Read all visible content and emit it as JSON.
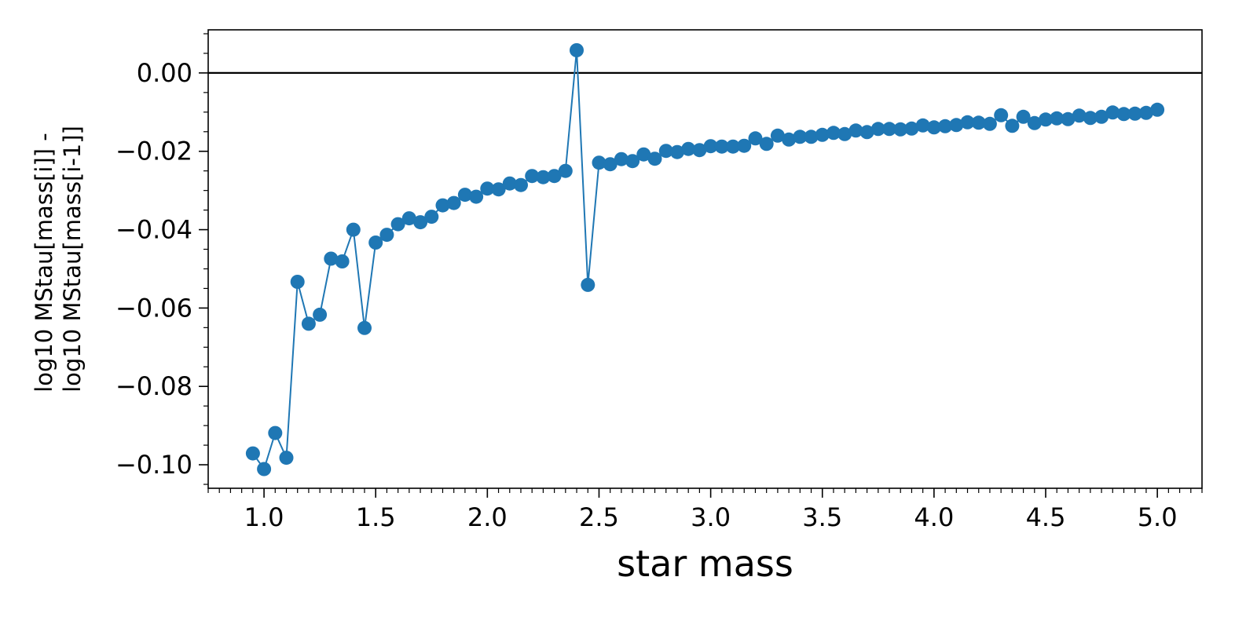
{
  "chart_data": {
    "type": "line",
    "xlabel": "star mass",
    "ylabel_lines": [
      "log10 MStau[mass[i]] -",
      "log10 MStau[mass[i-1]]"
    ],
    "xlim": [
      0.75,
      5.2
    ],
    "ylim": [
      -0.106,
      0.011
    ],
    "x_ticks": [
      1.0,
      1.5,
      2.0,
      2.5,
      3.0,
      3.5,
      4.0,
      4.5,
      5.0
    ],
    "x_tick_labels": [
      "1.0",
      "1.5",
      "2.0",
      "2.5",
      "3.0",
      "3.5",
      "4.0",
      "4.5",
      "5.0"
    ],
    "y_ticks": [
      0.0,
      -0.02,
      -0.04,
      -0.06,
      -0.08,
      -0.1
    ],
    "y_tick_labels": [
      "0.00",
      "−0.02",
      "−0.04",
      "−0.06",
      "−0.08",
      "−0.10"
    ],
    "reference_line_y": 0.0,
    "grid": false,
    "colors": {
      "series": "#1f77b4",
      "axes": "#000000",
      "reference_line": "#000000"
    },
    "series": [
      {
        "x": [
          0.95,
          1.0,
          1.05,
          1.1,
          1.15,
          1.2,
          1.25,
          1.3,
          1.35,
          1.4,
          1.45,
          1.5,
          1.55,
          1.6,
          1.65,
          1.7,
          1.75,
          1.8,
          1.85,
          1.9,
          1.95,
          2.0,
          2.05,
          2.1,
          2.15,
          2.2,
          2.25,
          2.3,
          2.35,
          2.4,
          2.45,
          2.5,
          2.55,
          2.6,
          2.65,
          2.7,
          2.75,
          2.8,
          2.85,
          2.9,
          2.95,
          3.0,
          3.05,
          3.1,
          3.15,
          3.2,
          3.25,
          3.3,
          3.35,
          3.4,
          3.45,
          3.5,
          3.55,
          3.6,
          3.65,
          3.7,
          3.75,
          3.8,
          3.85,
          3.9,
          3.95,
          4.0,
          4.05,
          4.1,
          4.15,
          4.2,
          4.25,
          4.3,
          4.35,
          4.4,
          4.45,
          4.5,
          4.55,
          4.6,
          4.65,
          4.7,
          4.75,
          4.8,
          4.85,
          4.9,
          4.95,
          5.0
        ],
        "values": [
          -0.0971,
          -0.1011,
          -0.0919,
          -0.0982,
          -0.0533,
          -0.064,
          -0.0617,
          -0.0474,
          -0.0481,
          -0.04,
          -0.0651,
          -0.0433,
          -0.0413,
          -0.0386,
          -0.0371,
          -0.0381,
          -0.0367,
          -0.0338,
          -0.0332,
          -0.0311,
          -0.0316,
          -0.0295,
          -0.0297,
          -0.0282,
          -0.0286,
          -0.0263,
          -0.0266,
          -0.0263,
          -0.025,
          0.0058,
          -0.0541,
          -0.0229,
          -0.0233,
          -0.022,
          -0.0225,
          -0.0208,
          -0.0219,
          -0.0199,
          -0.0202,
          -0.0194,
          -0.0197,
          -0.0187,
          -0.0188,
          -0.0188,
          -0.0186,
          -0.0167,
          -0.0181,
          -0.016,
          -0.017,
          -0.0163,
          -0.0163,
          -0.0158,
          -0.0153,
          -0.0156,
          -0.0147,
          -0.0151,
          -0.0143,
          -0.0143,
          -0.0144,
          -0.0142,
          -0.0134,
          -0.0139,
          -0.0136,
          -0.0133,
          -0.0126,
          -0.0127,
          -0.013,
          -0.0108,
          -0.0135,
          -0.0112,
          -0.0128,
          -0.0119,
          -0.0116,
          -0.0118,
          -0.0109,
          -0.0115,
          -0.0112,
          -0.0101,
          -0.0105,
          -0.0104,
          -0.0102,
          -0.0094
        ]
      }
    ]
  }
}
